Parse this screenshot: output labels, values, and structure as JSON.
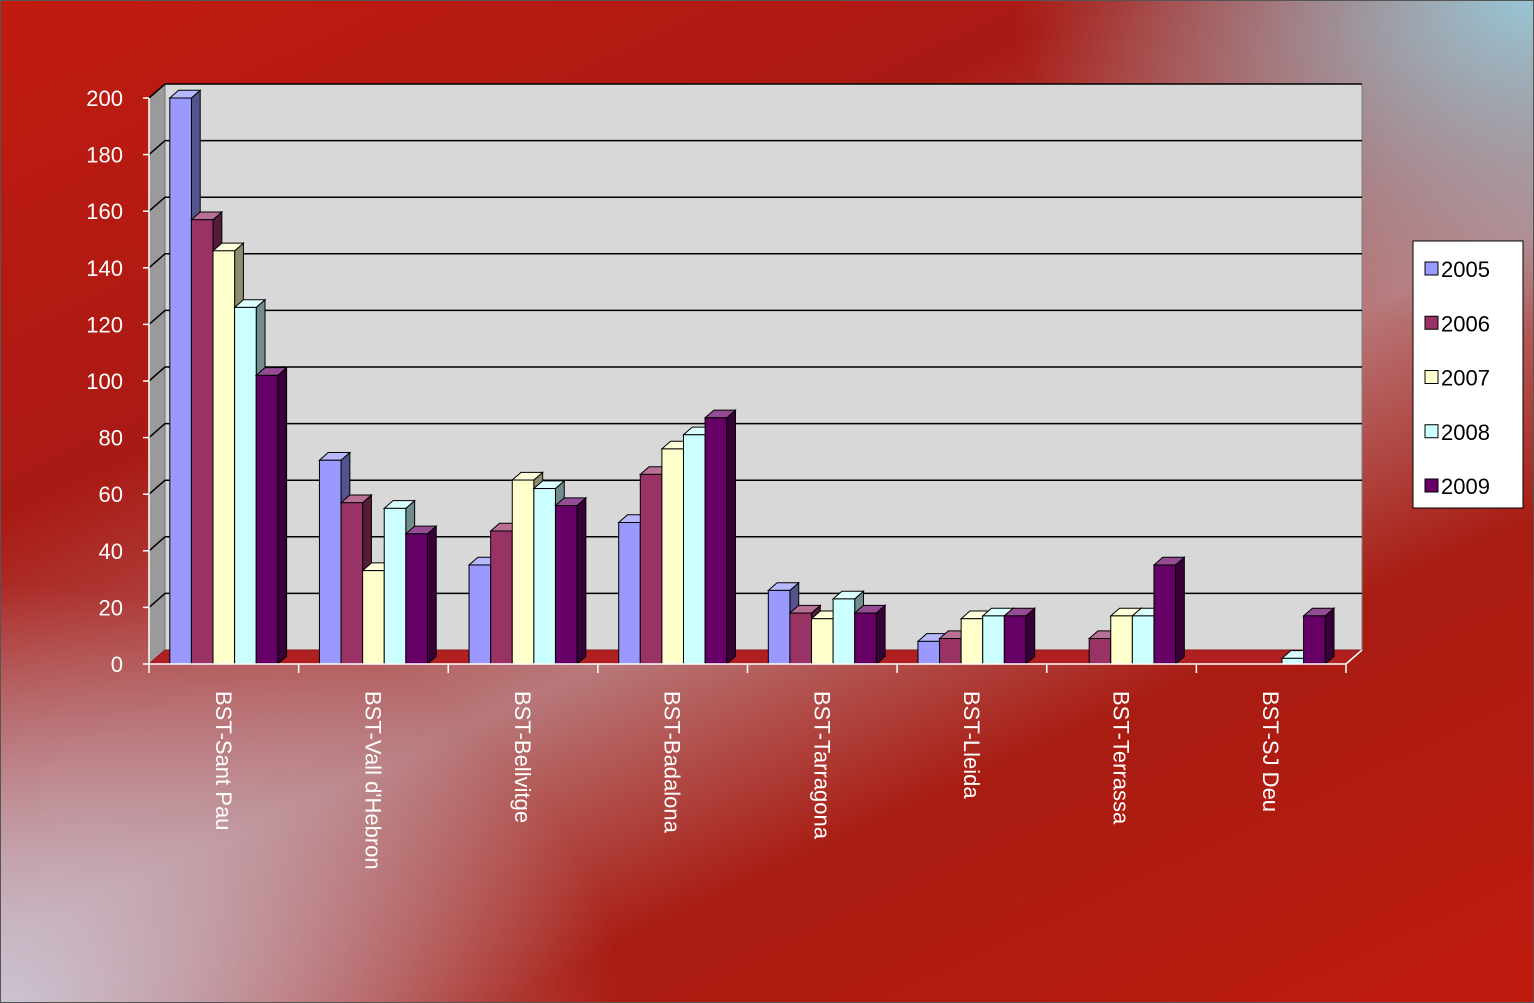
{
  "chart_data": {
    "type": "bar",
    "categories": [
      "BST-Sant Pau",
      "BST-Vall d'Hebron",
      "BST-Bellvitge",
      "BST-Badalona",
      "BST-Tarragona",
      "BST-Lleida",
      "BST-Terrassa",
      "BST-SJ Deu"
    ],
    "series": [
      {
        "name": "2005",
        "color": "#9999ff",
        "values": [
          200,
          72,
          35,
          50,
          26,
          8,
          null,
          null
        ]
      },
      {
        "name": "2006",
        "color": "#993366",
        "values": [
          157,
          57,
          47,
          67,
          18,
          9,
          9,
          null
        ]
      },
      {
        "name": "2007",
        "color": "#ffffcc",
        "values": [
          146,
          33,
          65,
          76,
          16,
          16,
          17,
          null
        ]
      },
      {
        "name": "2008",
        "color": "#ccffff",
        "values": [
          126,
          55,
          62,
          81,
          23,
          17,
          17,
          2
        ]
      },
      {
        "name": "2009",
        "color": "#660066",
        "values": [
          102,
          46,
          56,
          87,
          18,
          17,
          35,
          17
        ]
      }
    ],
    "title": "",
    "xlabel": "",
    "ylabel": "",
    "ylim": [
      0,
      200
    ],
    "yticks": [
      0,
      20,
      40,
      60,
      80,
      100,
      120,
      140,
      160,
      180,
      200
    ],
    "grid": true,
    "legend": "right",
    "style": "3d-clustered-column"
  }
}
